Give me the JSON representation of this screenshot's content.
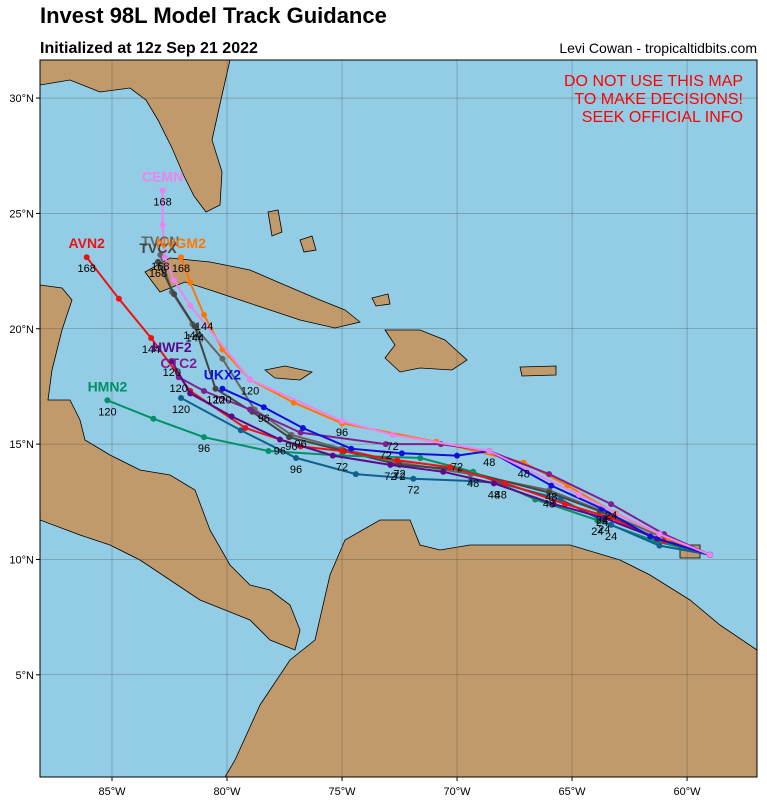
{
  "chart_data": {
    "type": "track-map",
    "title": "Invest 98L Model Track Guidance",
    "subtitle": "Initialized at 12z Sep 21 2022",
    "credit": "Levi Cowan - tropicaltidbits.com",
    "warning": [
      "DO NOT USE THIS MAP",
      "TO MAKE DECISIONS!",
      "SEEK OFFICIAL INFO"
    ],
    "warning_color": "#ff0000",
    "xlim": [
      -88.13,
      -56.96
    ],
    "ylim": [
      0.57,
      31.65
    ],
    "xticks": [
      {
        "value": -85,
        "label": "85°W"
      },
      {
        "value": -80,
        "label": "80°W"
      },
      {
        "value": -75,
        "label": "75°W"
      },
      {
        "value": -70,
        "label": "70°W"
      },
      {
        "value": -65,
        "label": "65°W"
      },
      {
        "value": -60,
        "label": "60°W"
      }
    ],
    "yticks": [
      {
        "value": 5,
        "label": "5°N"
      },
      {
        "value": 10,
        "label": "10°N"
      },
      {
        "value": 15,
        "label": "15°N"
      },
      {
        "value": 20,
        "label": "20°N"
      },
      {
        "value": 25,
        "label": "25°N"
      },
      {
        "value": 30,
        "label": "30°N"
      }
    ],
    "grid": true,
    "series": [
      {
        "name": "TVCN",
        "color": "#666666",
        "lon": [
          -82.9,
          -82.4,
          -81.5,
          -80.2,
          -78.8,
          -77.2,
          -75.0,
          -72.5,
          -69.4,
          -66.0,
          -63.7,
          -60.7,
          -59.0
        ],
        "lat": [
          23.2,
          21.6,
          20.2,
          18.7,
          16.5,
          15.4,
          14.8,
          14.2,
          13.7,
          13.0,
          12.1,
          10.8,
          10.2
        ],
        "labels": [
          "168",
          null,
          "144",
          null,
          null,
          "96",
          null,
          "72",
          null,
          null,
          "24",
          null,
          null
        ]
      },
      {
        "name": "TVCX",
        "color": "#444444",
        "lon": [
          -83.0,
          -82.3,
          -81.4,
          -80.5,
          -78.9,
          -77.3,
          -74.9,
          -72.5,
          -69.9,
          -66.0,
          -63.8,
          -61.2,
          -59.0
        ],
        "lat": [
          22.9,
          21.5,
          20.1,
          17.4,
          16.4,
          15.3,
          14.7,
          14.1,
          13.9,
          12.9,
          12.1,
          10.8,
          10.2
        ],
        "labels": [
          "168",
          null,
          "144",
          "120",
          null,
          null,
          null,
          "72",
          null,
          "48",
          null,
          null,
          null
        ]
      },
      {
        "name": "HMN2",
        "color": "#009066",
        "lon": [
          -85.2,
          -83.2,
          -81.0,
          -78.2,
          -75.0,
          -71.6,
          -69.3,
          -66.6,
          -63.9,
          -61.4,
          -59.0
        ],
        "lat": [
          16.9,
          16.1,
          15.3,
          14.7,
          14.5,
          14.4,
          13.8,
          12.6,
          11.7,
          10.8,
          10.2
        ],
        "labels": [
          "120",
          null,
          "96",
          null,
          "72",
          null,
          "48",
          null,
          "24",
          null,
          null
        ]
      },
      {
        "color": "#10608f",
        "lon": [
          -82.0,
          -79.4,
          -77.0,
          -74.4,
          -71.9,
          -69.4,
          -68.1,
          -65.5,
          -63.3,
          -61.2,
          -59.0
        ],
        "lat": [
          17.0,
          15.6,
          14.4,
          13.7,
          13.5,
          13.4,
          13.3,
          12.6,
          11.5,
          10.6,
          10.2
        ],
        "labels": [
          "120",
          null,
          "96",
          null,
          "72",
          null,
          "48",
          null,
          "24",
          null,
          null
        ]
      },
      {
        "name": "AVN2",
        "color": "#ee1111",
        "lon": [
          -86.1,
          -84.7,
          -83.3,
          -81.6,
          -79.2,
          -76.8,
          -75.0,
          -72.6,
          -70.3,
          -67.9,
          -65.3,
          -63.3,
          -61.0,
          -59.0
        ],
        "lat": [
          23.1,
          21.3,
          19.6,
          17.3,
          15.7,
          14.9,
          14.7,
          14.3,
          14.0,
          13.3,
          12.4,
          11.8,
          10.8,
          10.2
        ],
        "labels": [
          "168",
          null,
          "144",
          null,
          null,
          null,
          null,
          null,
          null,
          null,
          null,
          null,
          null,
          null
        ]
      },
      {
        "name": "NVGM2",
        "color": "#ff7700",
        "lon": [
          -82.0,
          -81.6,
          -81.0,
          -80.2,
          -79.0,
          -77.1,
          -75.0,
          -70.9,
          -67.1,
          -65.2,
          -63.1,
          -60.8,
          -59.0
        ],
        "lat": [
          23.1,
          22.0,
          20.6,
          19.1,
          17.8,
          16.8,
          15.9,
          15.1,
          14.2,
          13.2,
          12.0,
          10.9,
          10.2
        ],
        "labels": [
          "168",
          null,
          "144",
          null,
          "120",
          null,
          null,
          null,
          "48",
          null,
          null,
          null,
          null
        ]
      },
      {
        "name": "CTC2",
        "color": "#80208f",
        "lon": [
          -82.1,
          -81.0,
          -79.0,
          -76.8,
          -73.1,
          -70.7,
          -68.6,
          -66.0,
          -63.3,
          -61.0,
          -59.0
        ],
        "lat": [
          17.9,
          17.3,
          16.5,
          15.5,
          15.0,
          15.0,
          14.7,
          13.7,
          12.4,
          11.1,
          10.2
        ],
        "labels": [
          "120",
          null,
          null,
          "96",
          "72",
          null,
          "48",
          null,
          "24",
          null,
          null
        ]
      },
      {
        "name": "HWF2",
        "color": "#5a0a8a",
        "lon": [
          -82.4,
          -81.6,
          -79.8,
          -77.7,
          -75.4,
          -72.9,
          -70.6,
          -68.4,
          -65.8,
          -63.6,
          -61.3,
          -59.0
        ],
        "lat": [
          18.6,
          17.2,
          16.2,
          15.2,
          14.5,
          14.1,
          13.8,
          13.3,
          12.4,
          11.8,
          10.9,
          10.2
        ],
        "labels": [
          "120",
          null,
          null,
          "96",
          null,
          "72",
          null,
          "48",
          null,
          "24",
          null,
          null
        ]
      },
      {
        "name": "UKX2",
        "color": "#1010dd",
        "lon": [
          -80.2,
          -78.4,
          -76.7,
          -74.6,
          -72.4,
          -70.0,
          -68.6,
          -65.9,
          -63.7,
          -61.6,
          -59.0
        ],
        "lat": [
          17.4,
          16.6,
          15.7,
          14.8,
          14.6,
          14.5,
          14.7,
          13.2,
          12.2,
          11.0,
          10.2
        ],
        "labels": [
          "120",
          "96",
          null,
          null,
          null,
          "72",
          null,
          "48",
          "24",
          null,
          null
        ]
      },
      {
        "name": "CEMN",
        "color": "#ee82ee",
        "lon": [
          -82.8,
          -82.8,
          -82.7,
          -82.3,
          -81.6,
          -79.0,
          -75.0,
          -72.8,
          -68.6,
          -64.7,
          -61.2,
          -59.0
        ],
        "lat": [
          26.0,
          24.5,
          23.1,
          22.1,
          21.0,
          17.8,
          16.0,
          15.4,
          14.7,
          12.8,
          11.1,
          10.2
        ],
        "labels": [
          "168",
          null,
          null,
          null,
          null,
          null,
          "96",
          "72",
          null,
          null,
          null,
          null
        ]
      }
    ]
  }
}
